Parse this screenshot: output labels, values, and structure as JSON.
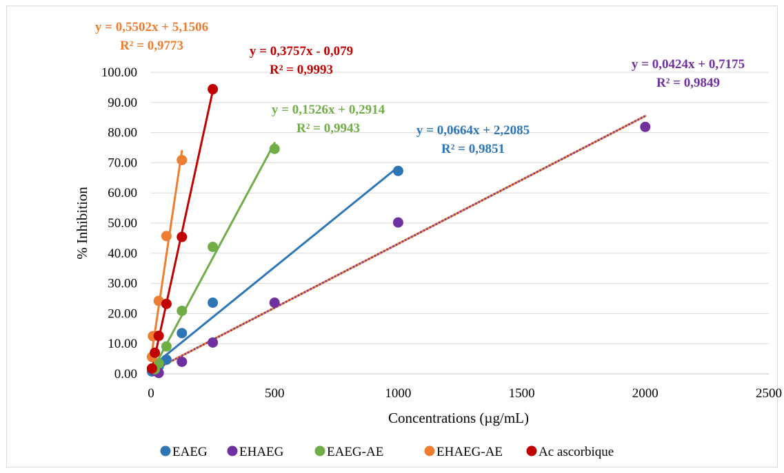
{
  "chart_data": {
    "type": "scatter",
    "xlabel": "Concentrations (µg/mL)",
    "ylabel": "% Inhibition",
    "xlim": [
      0,
      2500
    ],
    "ylim": [
      0,
      100
    ],
    "x_ticks": [
      "0",
      "500",
      "1000",
      "1500",
      "2000",
      "2500"
    ],
    "y_ticks": [
      "0.00",
      "10.00",
      "20.00",
      "30.00",
      "40.00",
      "50.00",
      "60.00",
      "70.00",
      "80.00",
      "90.00",
      "100.00"
    ],
    "grid": "horizontal",
    "legend_position": "bottom",
    "series": [
      {
        "name": "EAEG",
        "color": "#2E75B6",
        "x": [
          3.9,
          7.8,
          15.6,
          31.25,
          62.5,
          125,
          250,
          1000
        ],
        "y": [
          0.8,
          1.0,
          1.5,
          2.5,
          4.7,
          13.5,
          23.6,
          67.3
        ],
        "trendline": {
          "slope": 0.0664,
          "intercept": 2.2085,
          "x_range": [
            0,
            1000
          ]
        },
        "equation": "y = 0,0664x + 2,2085",
        "r2": "R² = 0,9851"
      },
      {
        "name": "EHAEG",
        "color": "#7030A0",
        "x": [
          7.8,
          15.6,
          31.25,
          125,
          250,
          500,
          1000,
          2000
        ],
        "y": [
          1.5,
          1.0,
          0.3,
          4.0,
          10.4,
          23.6,
          50.2,
          81.9
        ],
        "trendline": {
          "slope": 0.0424,
          "intercept": 0.7175,
          "x_range": [
            0,
            2000
          ]
        },
        "equation": "y = 0,0424x + 0,7175",
        "r2": "R² = 0,9849"
      },
      {
        "name": "EAEG-AE",
        "color": "#70AD47",
        "x": [
          15.6,
          31.25,
          62.5,
          125,
          250,
          500
        ],
        "y": [
          1.5,
          3.5,
          9.1,
          20.9,
          42.1,
          74.6
        ],
        "trendline": {
          "slope": 0.1526,
          "intercept": 0.2914,
          "x_range": [
            0,
            500
          ]
        },
        "equation": "y = 0,1526x + 0,2914",
        "r2": "R² = 0,9943"
      },
      {
        "name": "EHAEG-AE",
        "color": "#ED7D31",
        "x": [
          3.9,
          7.8,
          31.25,
          62.5,
          125
        ],
        "y": [
          5.6,
          12.5,
          24.2,
          45.7,
          70.9
        ],
        "trendline": {
          "slope": 0.5502,
          "intercept": 5.1506,
          "x_range": [
            0,
            125
          ]
        },
        "equation": "y = 0,5502x + 5,1506",
        "r2": "R² = 0,9773"
      },
      {
        "name": "Ac ascorbique",
        "color": "#C00000",
        "x": [
          3.9,
          15.6,
          31.25,
          62.5,
          125,
          250
        ],
        "y": [
          1.8,
          7.0,
          12.6,
          23.2,
          45.4,
          94.4
        ],
        "trendline": {
          "slope": 0.3757,
          "intercept": -0.079,
          "x_range": [
            0,
            250
          ]
        },
        "equation": "y = 0,3757x - 0,079",
        "r2": "R² = 0,9993"
      }
    ]
  }
}
